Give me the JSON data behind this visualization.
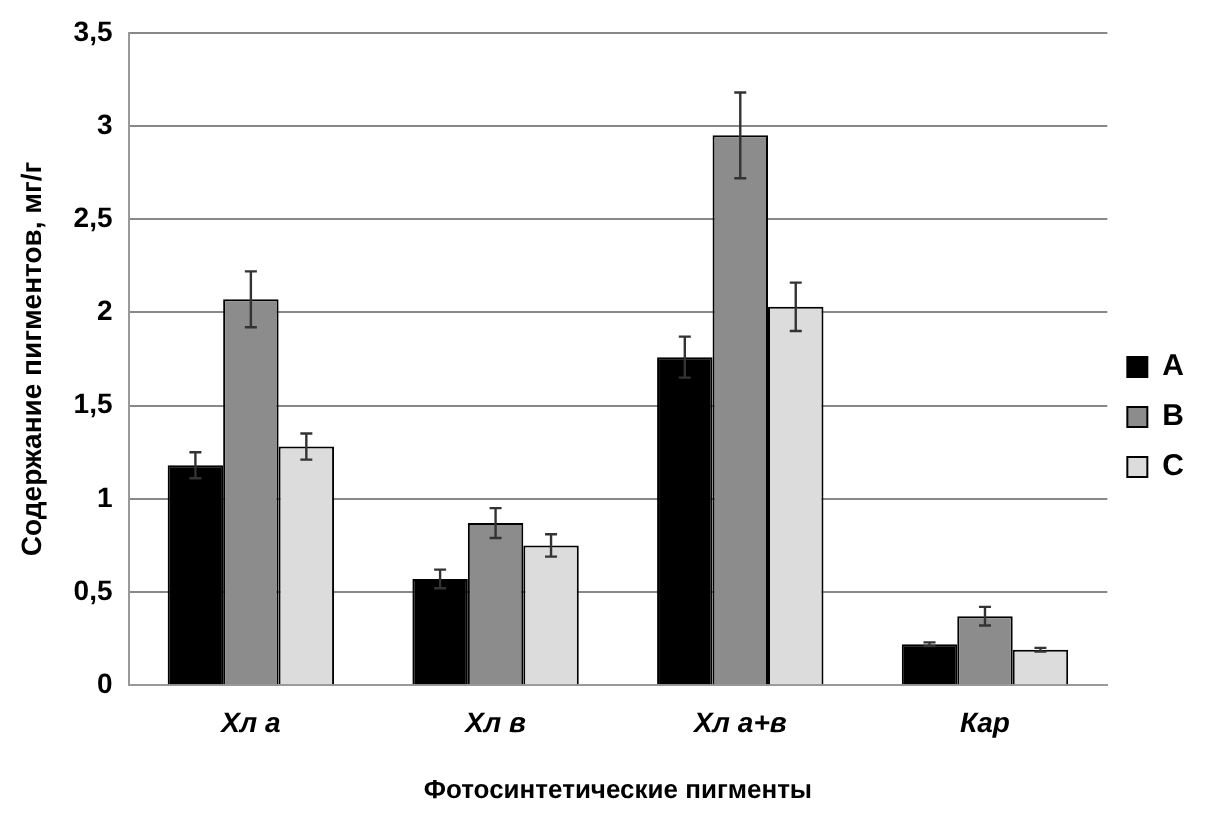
{
  "chart_data": {
    "type": "bar",
    "xlabel": "Фотосинтетические пигменты",
    "ylabel": "Содержание пигментов, мг/г",
    "categories": [
      "Хл a",
      "Хл в",
      "Хл а+в",
      "Кар"
    ],
    "series": [
      {
        "name": "A",
        "color": "#000000",
        "values": [
          1.18,
          0.57,
          1.76,
          0.22
        ],
        "errors": [
          0.07,
          0.05,
          0.11,
          0.01
        ]
      },
      {
        "name": "B",
        "color": "#8c8c8c",
        "values": [
          2.07,
          0.87,
          2.95,
          0.37
        ],
        "errors": [
          0.15,
          0.08,
          0.23,
          0.05
        ]
      },
      {
        "name": "C",
        "color": "#dcdcdc",
        "values": [
          1.28,
          0.75,
          2.03,
          0.19
        ],
        "errors": [
          0.07,
          0.06,
          0.13,
          0.01
        ]
      }
    ],
    "ylim": [
      0,
      3.5
    ],
    "yticks": [
      0,
      {
        "value": 0.5,
        "label": "0,5"
      },
      1,
      {
        "value": 1.5,
        "label": "1,5"
      },
      2,
      {
        "value": 2.5,
        "label": "2,5"
      },
      3,
      {
        "value": 3.5,
        "label": "3,5"
      }
    ],
    "grid": "y",
    "legend": "right"
  }
}
